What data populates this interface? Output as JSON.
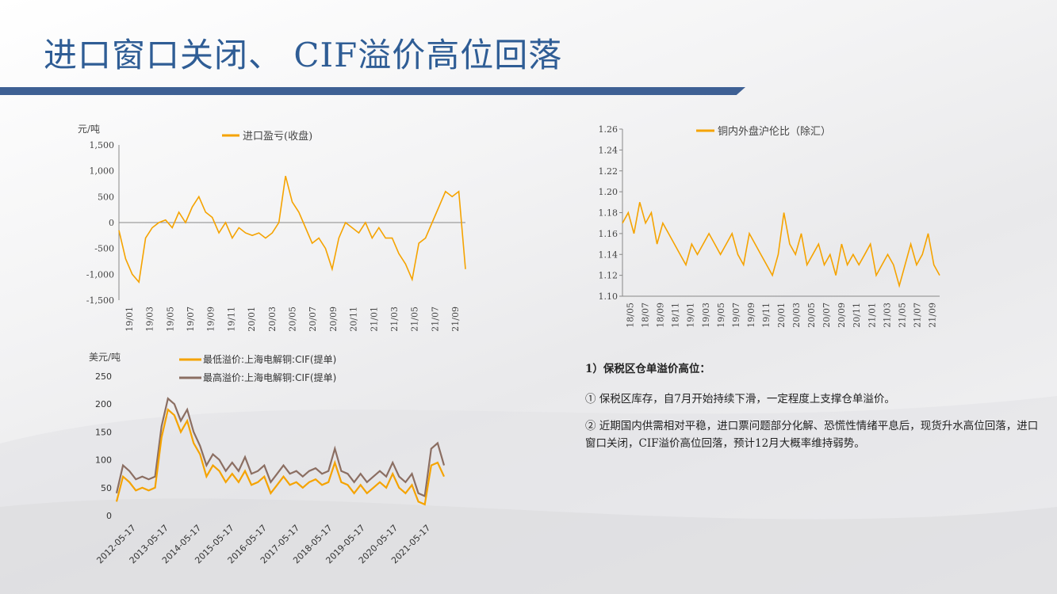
{
  "title": "进口窗口关闭、 CIF溢价高位回落",
  "colors": {
    "title": "#2f5d95",
    "bar": "#3e6094",
    "orange": "#f5a300",
    "brown": "#8b6e62"
  },
  "text": {
    "heading": "1）保税区仓单溢价高位：",
    "point1": "① 保税区库存，自7月开始持续下滑，一定程度上支撑仓单溢价。",
    "point2": "② 近期国内供需相对平稳，进口票问题部分化解、恐慌性情绪平息后，现货升水高位回落，进口窗口关闭，CIF溢价高位回落，预计12月大概率维持弱势。"
  },
  "chart_data": [
    {
      "type": "line",
      "unit": "元/吨",
      "ylim": [
        -1500,
        1500
      ],
      "yticks": [
        "1,500",
        "1,000",
        "500",
        "0",
        "-500",
        "-1,000",
        "-1,500"
      ],
      "ytick_values": [
        1500,
        1000,
        500,
        0,
        -500,
        -1000,
        -1500
      ],
      "x_labels": [
        "19/01",
        "19/03",
        "19/05",
        "19/07",
        "19/09",
        "19/11",
        "20/01",
        "20/03",
        "20/05",
        "20/07",
        "20/09",
        "20/11",
        "21/01",
        "21/03",
        "21/05",
        "21/07",
        "21/09"
      ],
      "series": [
        {
          "name": "进口盈亏(收盘)",
          "color": "#f5a300",
          "values": [
            -150,
            -700,
            -1000,
            -1150,
            -300,
            -100,
            0,
            50,
            -100,
            200,
            0,
            300,
            500,
            200,
            100,
            -200,
            0,
            -300,
            -100,
            -200,
            -250,
            -200,
            -300,
            -200,
            0,
            900,
            400,
            200,
            -100,
            -400,
            -300,
            -500,
            -900,
            -300,
            0,
            -100,
            -200,
            0,
            -300,
            -100,
            -300,
            -300,
            -600,
            -800,
            -1100,
            -400,
            -300,
            0,
            300,
            600,
            500,
            600,
            -900
          ]
        }
      ]
    },
    {
      "type": "line",
      "unit": "",
      "ylim": [
        1.1,
        1.26
      ],
      "yticks": [
        "1.26",
        "1.24",
        "1.22",
        "1.20",
        "1.18",
        "1.16",
        "1.14",
        "1.12",
        "1.10"
      ],
      "ytick_values": [
        1.26,
        1.24,
        1.22,
        1.2,
        1.18,
        1.16,
        1.14,
        1.12,
        1.1
      ],
      "x_labels": [
        "18/05",
        "18/07",
        "18/09",
        "18/11",
        "19/01",
        "19/03",
        "19/05",
        "19/07",
        "19/09",
        "19/11",
        "20/01",
        "20/03",
        "20/05",
        "20/07",
        "20/09",
        "20/11",
        "21/01",
        "21/03",
        "21/05",
        "21/07",
        "21/09"
      ],
      "series": [
        {
          "name": "铜内外盘沪伦比（除汇）",
          "color": "#f5a300",
          "values": [
            1.17,
            1.18,
            1.16,
            1.19,
            1.17,
            1.18,
            1.15,
            1.17,
            1.16,
            1.15,
            1.14,
            1.13,
            1.15,
            1.14,
            1.15,
            1.16,
            1.15,
            1.14,
            1.15,
            1.16,
            1.14,
            1.13,
            1.16,
            1.15,
            1.14,
            1.13,
            1.12,
            1.14,
            1.18,
            1.15,
            1.14,
            1.16,
            1.13,
            1.14,
            1.15,
            1.13,
            1.14,
            1.12,
            1.15,
            1.13,
            1.14,
            1.13,
            1.14,
            1.15,
            1.12,
            1.13,
            1.14,
            1.13,
            1.11,
            1.13,
            1.15,
            1.13,
            1.14,
            1.16,
            1.13,
            1.12
          ]
        }
      ]
    },
    {
      "type": "line",
      "unit": "美元/吨",
      "ylim": [
        0,
        250
      ],
      "yticks": [
        "250",
        "200",
        "150",
        "100",
        "50",
        "0"
      ],
      "ytick_values": [
        250,
        200,
        150,
        100,
        50,
        0
      ],
      "x_labels": [
        "2012-05-17",
        "2013-05-17",
        "2014-05-17",
        "2015-05-17",
        "2016-05-17",
        "2017-05-17",
        "2018-05-17",
        "2019-05-17",
        "2020-05-17",
        "2021-05-17"
      ],
      "series": [
        {
          "name": "最低溢价:上海电解铜:CIF(提单)",
          "color": "#f5a300",
          "values": [
            25,
            70,
            60,
            45,
            50,
            45,
            50,
            140,
            190,
            180,
            150,
            170,
            130,
            110,
            70,
            90,
            80,
            60,
            75,
            60,
            80,
            55,
            60,
            70,
            40,
            55,
            70,
            55,
            60,
            50,
            60,
            65,
            55,
            60,
            95,
            60,
            55,
            40,
            55,
            40,
            50,
            60,
            50,
            75,
            50,
            40,
            55,
            25,
            20,
            90,
            95,
            70
          ]
        },
        {
          "name": "最高溢价:上海电解铜:CIF(提单)",
          "color": "#8b6e62",
          "values": [
            40,
            90,
            80,
            65,
            70,
            65,
            70,
            160,
            210,
            200,
            170,
            190,
            150,
            125,
            90,
            110,
            100,
            80,
            95,
            80,
            105,
            75,
            80,
            90,
            60,
            75,
            90,
            75,
            80,
            70,
            80,
            85,
            75,
            80,
            120,
            80,
            75,
            60,
            75,
            60,
            70,
            80,
            70,
            95,
            70,
            60,
            75,
            40,
            35,
            120,
            130,
            90
          ]
        }
      ]
    }
  ]
}
